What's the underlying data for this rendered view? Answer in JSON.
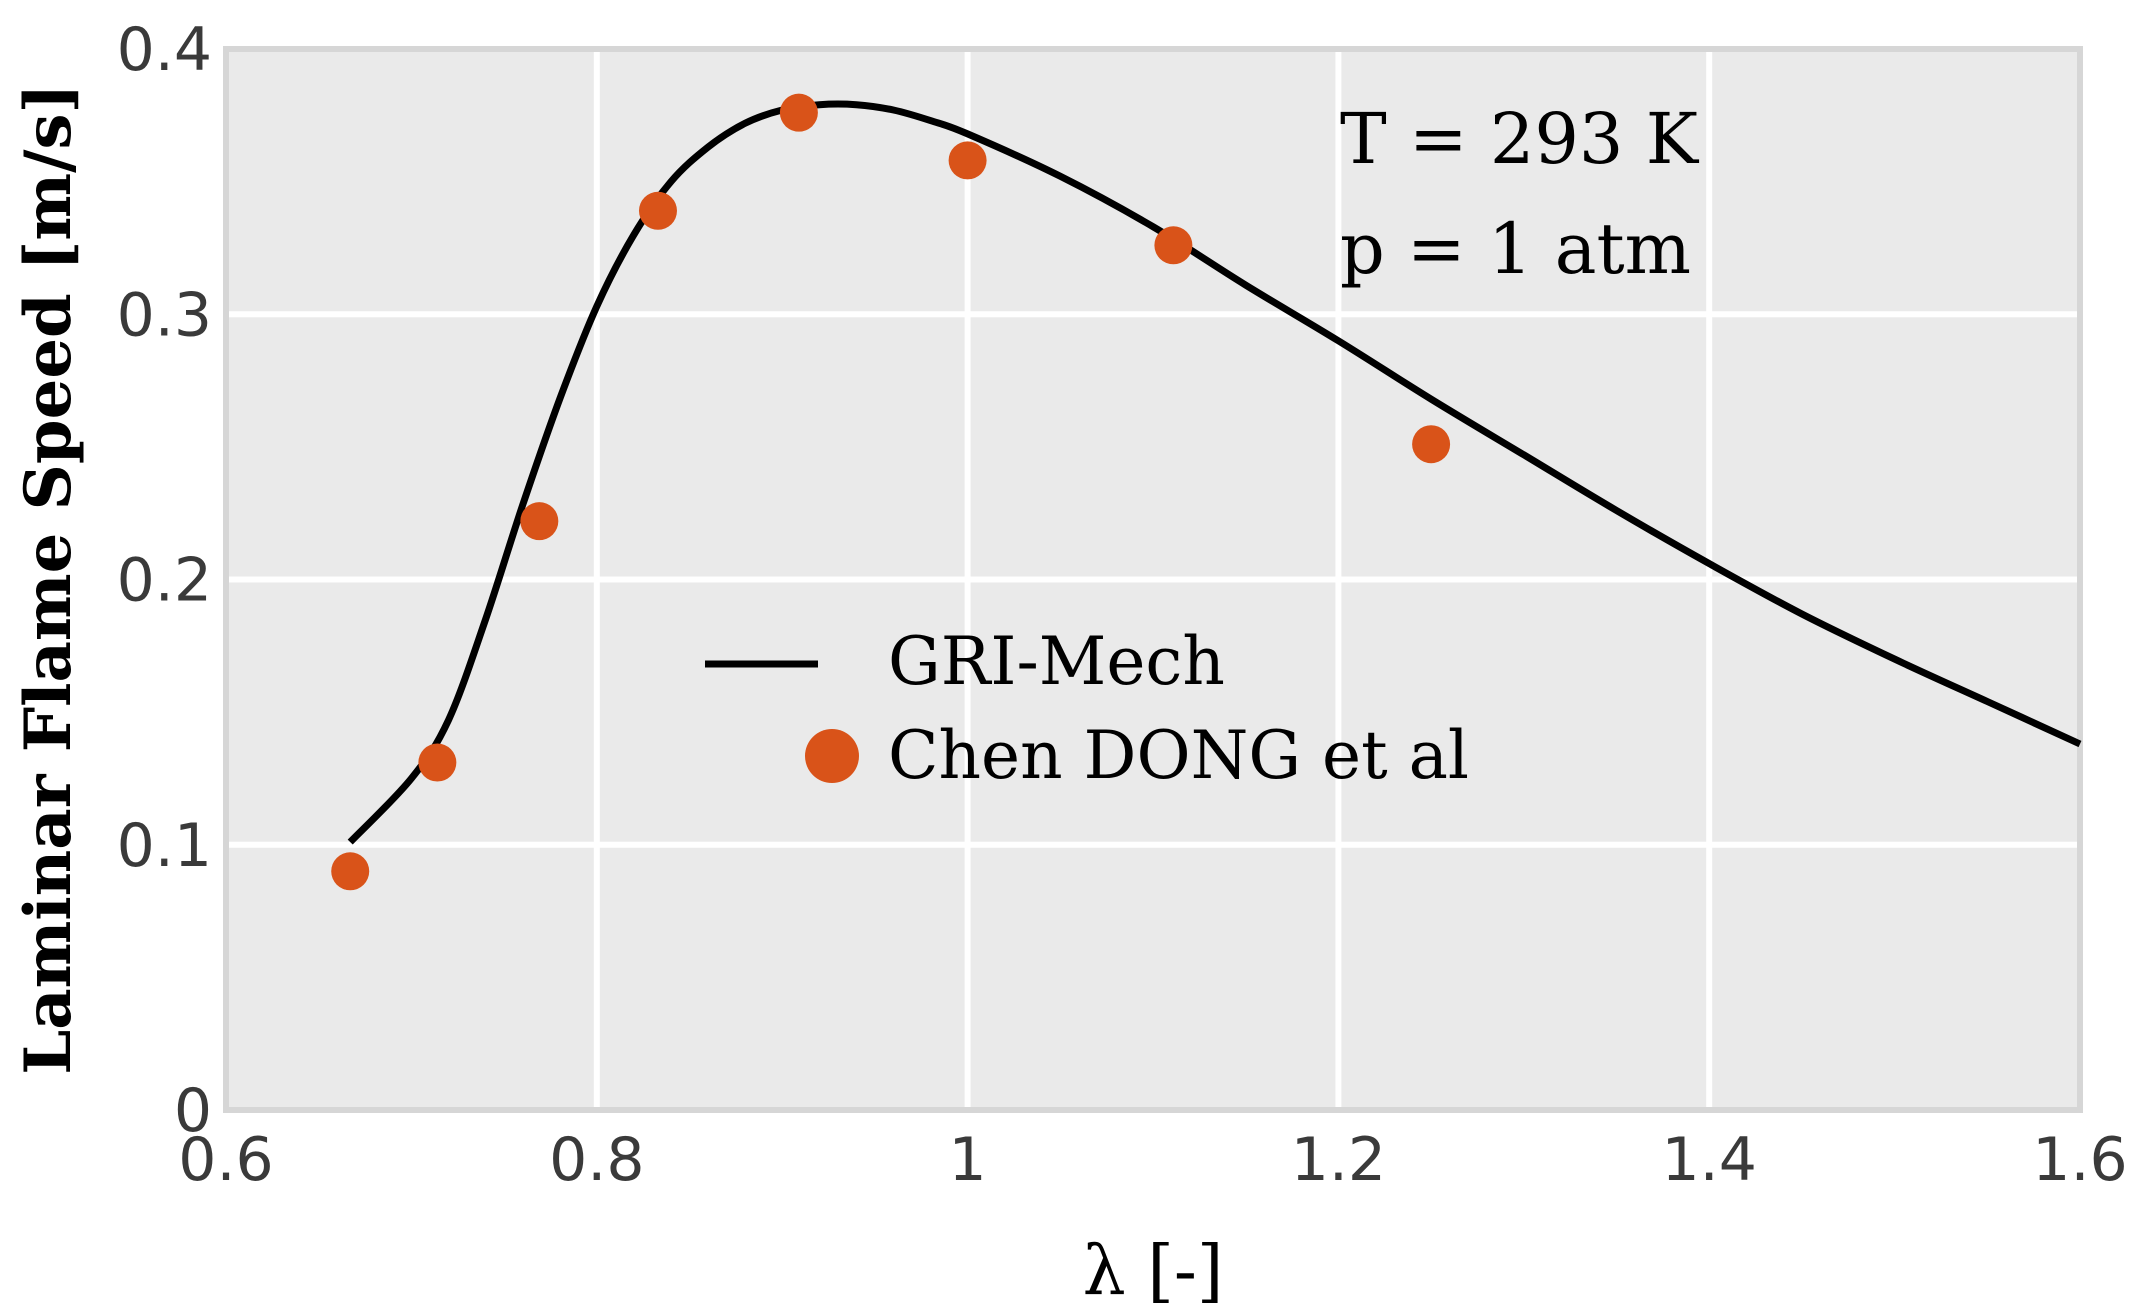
{
  "chart_data": {
    "type": "line",
    "xlabel": "λ [-]",
    "ylabel": "Laminar Flame Speed [m/s]",
    "xlim": [
      0.6,
      1.6
    ],
    "ylim": [
      0,
      0.4
    ],
    "x_ticks": [
      "0.6",
      "0.8",
      "1",
      "1.2",
      "1.4",
      "1.6"
    ],
    "y_ticks": [
      "0",
      "0.1",
      "0.2",
      "0.3",
      "0.4"
    ],
    "grid": true,
    "legend_position": "center",
    "annotations": [
      "T = 293 K",
      "p = 1 atm"
    ],
    "series": [
      {
        "name": "GRI-Mech",
        "type": "line",
        "color": "#000000",
        "x": [
          0.667,
          0.7,
          0.72,
          0.74,
          0.76,
          0.78,
          0.8,
          0.82,
          0.84,
          0.86,
          0.88,
          0.9,
          0.92,
          0.94,
          0.96,
          0.98,
          1.0,
          1.05,
          1.1,
          1.15,
          1.2,
          1.25,
          1.3,
          1.35,
          1.4,
          1.45,
          1.5,
          1.55,
          1.6
        ],
        "y": [
          0.101,
          0.125,
          0.147,
          0.185,
          0.228,
          0.268,
          0.303,
          0.33,
          0.35,
          0.363,
          0.372,
          0.377,
          0.379,
          0.379,
          0.377,
          0.373,
          0.368,
          0.352,
          0.333,
          0.311,
          0.29,
          0.268,
          0.247,
          0.226,
          0.206,
          0.187,
          0.17,
          0.154,
          0.138
        ]
      },
      {
        "name": "Chen DONG et al",
        "type": "scatter",
        "color": "#d95319",
        "x": [
          0.667,
          0.714,
          0.769,
          0.833,
          0.909,
          1.0,
          1.111,
          1.25
        ],
        "y": [
          0.09,
          0.131,
          0.222,
          0.339,
          0.376,
          0.358,
          0.326,
          0.251
        ]
      }
    ]
  }
}
